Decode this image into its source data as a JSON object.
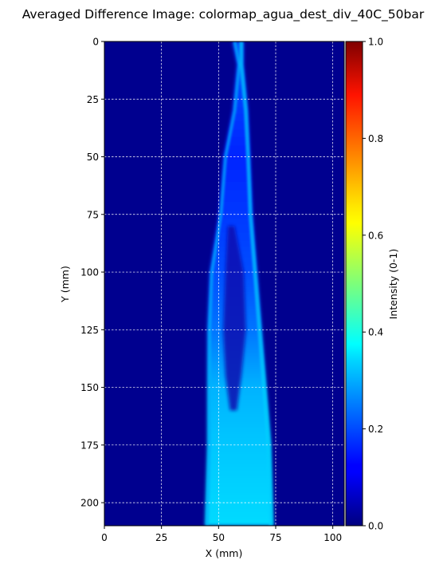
{
  "chart_data": {
    "type": "heatmap",
    "title": "Averaged Difference Image: colormap_agua_dest_div_40C_50bar",
    "xlabel": "X (mm)",
    "ylabel": "Y (mm)",
    "xlim": [
      0,
      105
    ],
    "ylim": [
      210,
      0
    ],
    "x_ticks": [
      "0",
      "25",
      "50",
      "75",
      "100"
    ],
    "y_ticks": [
      "0",
      "25",
      "50",
      "75",
      "100",
      "125",
      "150",
      "175",
      "200"
    ],
    "grid": true,
    "colormap": "jet",
    "background_color": "#00008f",
    "colorbar": {
      "label": "Intensity (0-1)",
      "range": [
        0,
        1
      ],
      "ticks": [
        "0.0",
        "0.2",
        "0.4",
        "0.6",
        "0.8",
        "1.0"
      ]
    },
    "spray_profile": {
      "description_units": "mm",
      "rows": [
        {
          "y": 0,
          "left": 56,
          "right": 61,
          "intensity": 0.2
        },
        {
          "y": 10,
          "left": 58,
          "right": 61,
          "intensity": 0.2
        },
        {
          "y": 30,
          "left": 56,
          "right": 63,
          "intensity": 0.18
        },
        {
          "y": 50,
          "left": 52,
          "right": 64,
          "intensity": 0.16
        },
        {
          "y": 75,
          "left": 50,
          "right": 65,
          "intensity": 0.18
        },
        {
          "y": 100,
          "left": 46,
          "right": 67,
          "intensity": 0.2
        },
        {
          "y": 125,
          "left": 45,
          "right": 69,
          "intensity": 0.24
        },
        {
          "y": 150,
          "left": 45,
          "right": 71,
          "intensity": 0.3
        },
        {
          "y": 175,
          "left": 45,
          "right": 73,
          "intensity": 0.32
        },
        {
          "y": 210,
          "left": 44,
          "right": 74,
          "intensity": 0.34
        }
      ],
      "inner_dark_region": [
        {
          "y": 80,
          "left": 54,
          "right": 57
        },
        {
          "y": 100,
          "left": 53,
          "right": 61
        },
        {
          "y": 125,
          "left": 52,
          "right": 62
        },
        {
          "y": 145,
          "left": 53,
          "right": 60
        },
        {
          "y": 160,
          "left": 55,
          "right": 58
        }
      ]
    }
  }
}
